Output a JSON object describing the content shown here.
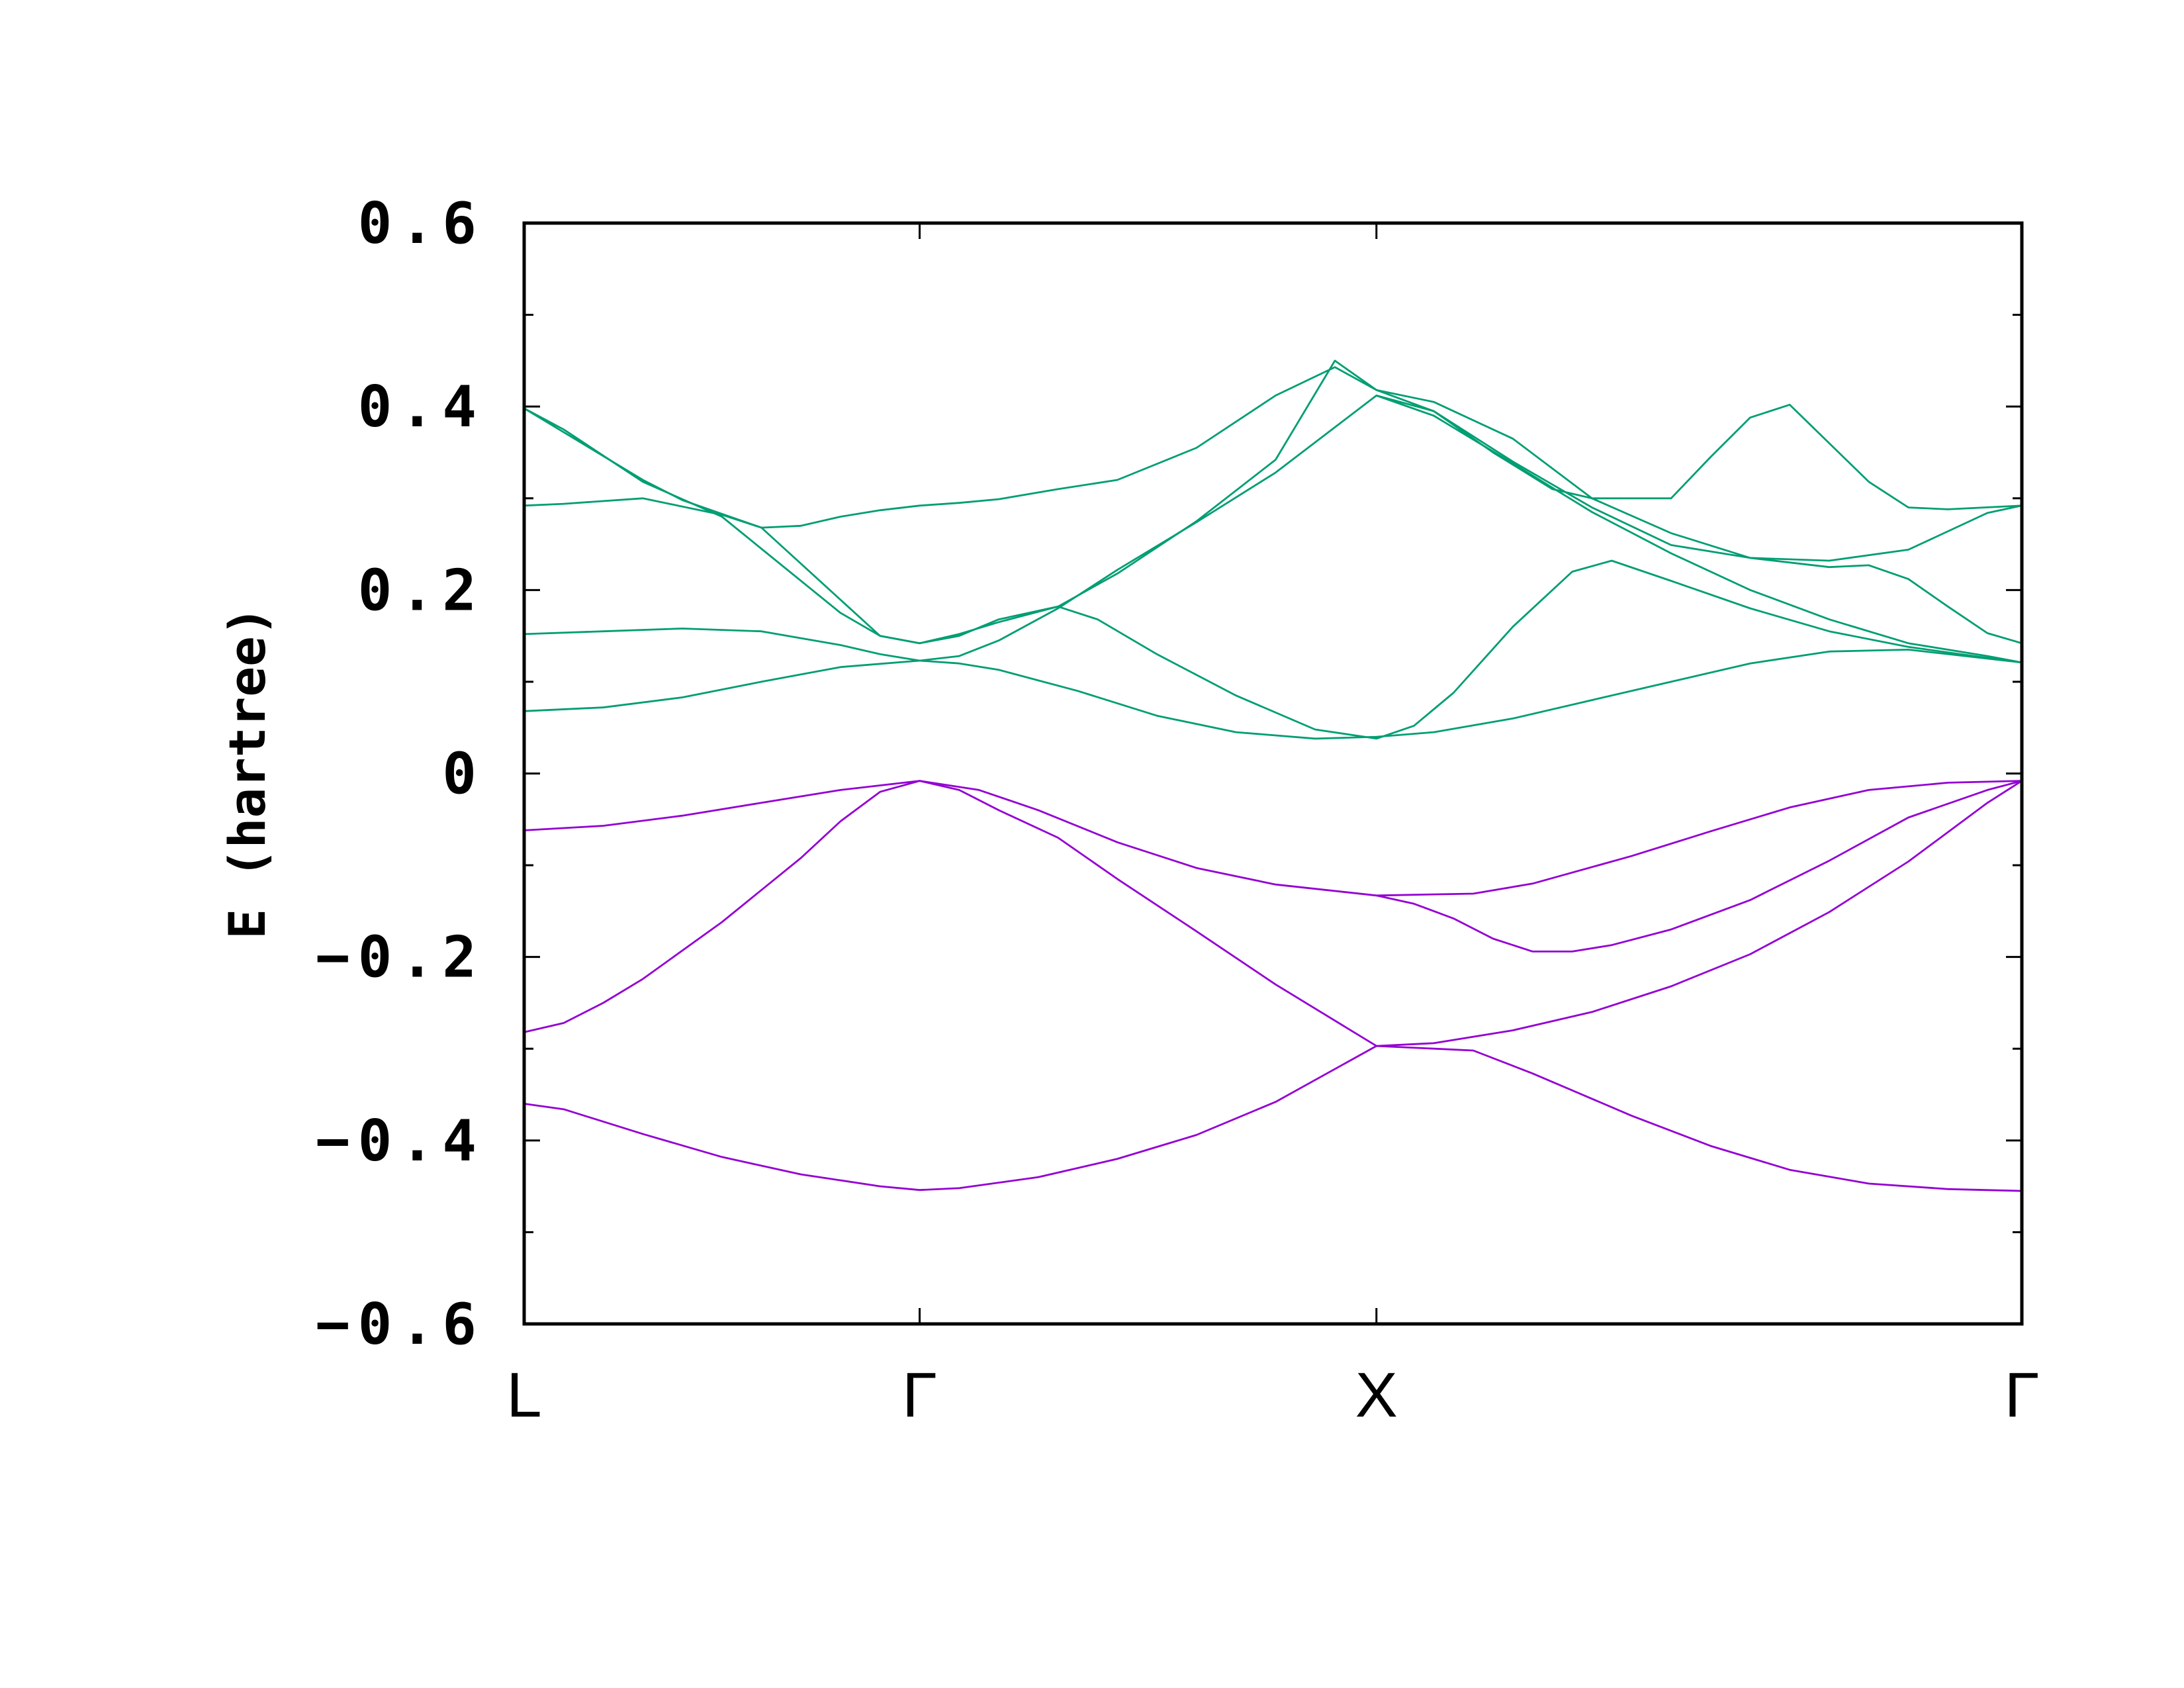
{
  "chart_data": {
    "type": "line",
    "ylabel": "E (hartree)",
    "ylim": [
      -0.6,
      0.6
    ],
    "yticks": [
      {
        "value": 0.6,
        "label": "0.6"
      },
      {
        "value": 0.4,
        "label": "0.4"
      },
      {
        "value": 0.2,
        "label": "0.2"
      },
      {
        "value": 0,
        "label": "0"
      },
      {
        "value": -0.2,
        "label": "−0.2"
      },
      {
        "value": -0.4,
        "label": "−0.4"
      },
      {
        "value": -0.6,
        "label": "−0.6"
      }
    ],
    "xlim": [
      0,
      3.787
    ],
    "xticks": [
      {
        "value": 0,
        "label": "L"
      },
      {
        "value": 1.0,
        "label": "Γ"
      },
      {
        "value": 2.155,
        "label": "X"
      },
      {
        "value": 3.787,
        "label": "Γ"
      }
    ],
    "grid": false,
    "colors": {
      "valence": "#9400D3",
      "conduction": "#009E73"
    },
    "series": [
      {
        "group": "valence",
        "points": [
          [
            0,
            -0.36
          ],
          [
            0.1,
            -0.366
          ],
          [
            0.3,
            -0.393
          ],
          [
            0.5,
            -0.418
          ],
          [
            0.7,
            -0.437
          ],
          [
            0.9,
            -0.45
          ],
          [
            1.0,
            -0.454
          ],
          [
            1.1,
            -0.452
          ],
          [
            1.3,
            -0.44
          ],
          [
            1.5,
            -0.42
          ],
          [
            1.7,
            -0.394
          ],
          [
            1.9,
            -0.358
          ],
          [
            2.155,
            -0.297
          ],
          [
            2.4,
            -0.302
          ],
          [
            2.55,
            -0.327
          ],
          [
            2.8,
            -0.373
          ],
          [
            3.0,
            -0.406
          ],
          [
            3.2,
            -0.432
          ],
          [
            3.4,
            -0.447
          ],
          [
            3.6,
            -0.453
          ],
          [
            3.787,
            -0.455
          ]
        ]
      },
      {
        "group": "valence",
        "points": [
          [
            0,
            -0.282
          ],
          [
            0.1,
            -0.272
          ],
          [
            0.2,
            -0.25
          ],
          [
            0.3,
            -0.224
          ],
          [
            0.5,
            -0.162
          ],
          [
            0.7,
            -0.092
          ],
          [
            0.8,
            -0.052
          ],
          [
            0.9,
            -0.02
          ],
          [
            1.0,
            -0.008
          ],
          [
            1.1,
            -0.018
          ],
          [
            1.2,
            -0.04
          ],
          [
            1.35,
            -0.07
          ],
          [
            1.5,
            -0.115
          ],
          [
            1.7,
            -0.172
          ],
          [
            1.9,
            -0.23
          ],
          [
            2.155,
            -0.297
          ],
          [
            2.3,
            -0.294
          ],
          [
            2.5,
            -0.28
          ],
          [
            2.7,
            -0.26
          ],
          [
            2.9,
            -0.232
          ],
          [
            3.1,
            -0.197
          ],
          [
            3.3,
            -0.151
          ],
          [
            3.5,
            -0.096
          ],
          [
            3.7,
            -0.032
          ],
          [
            3.787,
            -0.008
          ]
        ]
      },
      {
        "group": "valence",
        "points": [
          [
            0,
            -0.062
          ],
          [
            0.2,
            -0.057
          ],
          [
            0.4,
            -0.046
          ],
          [
            0.6,
            -0.032
          ],
          [
            0.8,
            -0.018
          ],
          [
            1.0,
            -0.008
          ],
          [
            1.15,
            -0.018
          ],
          [
            1.3,
            -0.04
          ],
          [
            1.5,
            -0.075
          ],
          [
            1.7,
            -0.103
          ],
          [
            1.9,
            -0.121
          ],
          [
            2.155,
            -0.133
          ],
          [
            2.4,
            -0.131
          ],
          [
            2.55,
            -0.12
          ],
          [
            2.8,
            -0.09
          ],
          [
            3.0,
            -0.063
          ],
          [
            3.2,
            -0.037
          ],
          [
            3.4,
            -0.018
          ],
          [
            3.6,
            -0.01
          ],
          [
            3.787,
            -0.008
          ]
        ]
      },
      {
        "group": "valence",
        "points": [
          [
            2.155,
            -0.133
          ],
          [
            2.25,
            -0.142
          ],
          [
            2.35,
            -0.158
          ],
          [
            2.45,
            -0.18
          ],
          [
            2.55,
            -0.194
          ],
          [
            2.65,
            -0.194
          ],
          [
            2.75,
            -0.187
          ],
          [
            2.9,
            -0.17
          ],
          [
            3.1,
            -0.138
          ],
          [
            3.3,
            -0.095
          ],
          [
            3.5,
            -0.048
          ],
          [
            3.7,
            -0.018
          ],
          [
            3.787,
            -0.008
          ]
        ]
      },
      {
        "group": "conduction",
        "points": [
          [
            0,
            0.068
          ],
          [
            0.2,
            0.072
          ],
          [
            0.4,
            0.083
          ],
          [
            0.6,
            0.1
          ],
          [
            0.8,
            0.116
          ],
          [
            1.0,
            0.123
          ],
          [
            1.1,
            0.12
          ],
          [
            1.2,
            0.113
          ],
          [
            1.4,
            0.09
          ],
          [
            1.6,
            0.063
          ],
          [
            1.8,
            0.045
          ],
          [
            2.0,
            0.038
          ],
          [
            2.155,
            0.04
          ],
          [
            2.3,
            0.045
          ],
          [
            2.5,
            0.06
          ],
          [
            2.7,
            0.08
          ],
          [
            2.9,
            0.1
          ],
          [
            3.1,
            0.12
          ],
          [
            3.3,
            0.133
          ],
          [
            3.5,
            0.135
          ],
          [
            3.787,
            0.121
          ]
        ]
      },
      {
        "group": "conduction",
        "points": [
          [
            0,
            0.152
          ],
          [
            0.2,
            0.155
          ],
          [
            0.4,
            0.158
          ],
          [
            0.6,
            0.155
          ],
          [
            0.8,
            0.14
          ],
          [
            0.9,
            0.13
          ],
          [
            1.0,
            0.123
          ],
          [
            1.1,
            0.128
          ],
          [
            1.2,
            0.145
          ],
          [
            1.35,
            0.18
          ],
          [
            1.5,
            0.222
          ],
          [
            1.7,
            0.274
          ],
          [
            1.9,
            0.328
          ],
          [
            2.155,
            0.412
          ],
          [
            2.3,
            0.395
          ],
          [
            2.5,
            0.34
          ],
          [
            2.7,
            0.29
          ],
          [
            2.9,
            0.249
          ],
          [
            3.1,
            0.235
          ],
          [
            3.3,
            0.232
          ],
          [
            3.5,
            0.244
          ],
          [
            3.7,
            0.284
          ],
          [
            3.787,
            0.292
          ]
        ]
      },
      {
        "group": "conduction",
        "points": [
          [
            0,
            0.292
          ],
          [
            0.1,
            0.294
          ],
          [
            0.3,
            0.3
          ],
          [
            0.5,
            0.282
          ],
          [
            0.6,
            0.268
          ],
          [
            0.7,
            0.27
          ],
          [
            0.8,
            0.28
          ],
          [
            0.9,
            0.287
          ],
          [
            1.0,
            0.292
          ],
          [
            1.1,
            0.295
          ],
          [
            1.2,
            0.299
          ],
          [
            1.35,
            0.31
          ],
          [
            1.5,
            0.32
          ],
          [
            1.7,
            0.355
          ],
          [
            1.9,
            0.412
          ],
          [
            2.05,
            0.443
          ],
          [
            2.155,
            0.418
          ],
          [
            2.3,
            0.395
          ],
          [
            2.45,
            0.35
          ],
          [
            2.6,
            0.31
          ],
          [
            2.7,
            0.3
          ],
          [
            2.8,
            0.3
          ],
          [
            2.9,
            0.3
          ],
          [
            3.0,
            0.345
          ],
          [
            3.1,
            0.388
          ],
          [
            3.2,
            0.402
          ],
          [
            3.3,
            0.36
          ],
          [
            3.4,
            0.318
          ],
          [
            3.5,
            0.29
          ],
          [
            3.6,
            0.288
          ],
          [
            3.787,
            0.292
          ]
        ]
      },
      {
        "group": "conduction",
        "points": [
          [
            0,
            0.398
          ],
          [
            0.1,
            0.375
          ],
          [
            0.3,
            0.318
          ],
          [
            0.5,
            0.28
          ],
          [
            0.6,
            0.245
          ],
          [
            0.8,
            0.175
          ],
          [
            0.9,
            0.15
          ],
          [
            1.0,
            0.142
          ],
          [
            1.1,
            0.15
          ],
          [
            1.2,
            0.168
          ],
          [
            1.35,
            0.182
          ],
          [
            1.5,
            0.218
          ],
          [
            1.7,
            0.275
          ],
          [
            1.9,
            0.342
          ],
          [
            2.05,
            0.45
          ],
          [
            2.155,
            0.418
          ],
          [
            2.3,
            0.405
          ],
          [
            2.5,
            0.365
          ],
          [
            2.7,
            0.3
          ],
          [
            2.9,
            0.262
          ],
          [
            3.1,
            0.235
          ],
          [
            3.3,
            0.225
          ],
          [
            3.4,
            0.227
          ],
          [
            3.5,
            0.212
          ],
          [
            3.6,
            0.182
          ],
          [
            3.7,
            0.153
          ],
          [
            3.787,
            0.142
          ]
        ]
      },
      {
        "group": "conduction",
        "points": [
          [
            0,
            0.398
          ],
          [
            0.3,
            0.32
          ],
          [
            0.4,
            0.298
          ],
          [
            0.6,
            0.268
          ],
          [
            0.9,
            0.15
          ],
          [
            1.0,
            0.142
          ],
          [
            1.1,
            0.152
          ],
          [
            1.2,
            0.165
          ],
          [
            1.35,
            0.182
          ],
          [
            1.45,
            0.168
          ],
          [
            1.6,
            0.13
          ],
          [
            1.8,
            0.085
          ],
          [
            2.0,
            0.048
          ],
          [
            2.155,
            0.038
          ],
          [
            2.25,
            0.052
          ],
          [
            2.35,
            0.088
          ],
          [
            2.5,
            0.16
          ],
          [
            2.65,
            0.22
          ],
          [
            2.75,
            0.232
          ],
          [
            2.9,
            0.21
          ],
          [
            3.1,
            0.18
          ],
          [
            3.3,
            0.155
          ],
          [
            3.5,
            0.138
          ],
          [
            3.7,
            0.126
          ],
          [
            3.787,
            0.121
          ]
        ]
      },
      {
        "group": "conduction",
        "points": [
          [
            2.155,
            0.412
          ],
          [
            2.3,
            0.39
          ],
          [
            2.5,
            0.338
          ],
          [
            2.7,
            0.285
          ],
          [
            2.9,
            0.24
          ],
          [
            3.1,
            0.2
          ],
          [
            3.3,
            0.168
          ],
          [
            3.5,
            0.142
          ],
          [
            3.7,
            0.128
          ],
          [
            3.787,
            0.121
          ]
        ]
      }
    ]
  }
}
